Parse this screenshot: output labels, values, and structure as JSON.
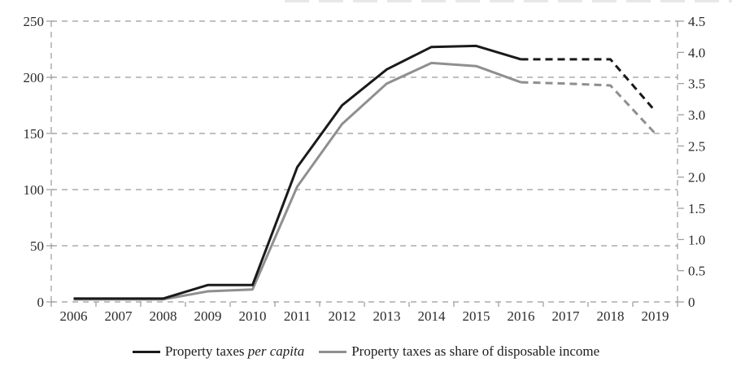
{
  "chart_data": {
    "type": "line",
    "title": "",
    "x_labels": [
      "2006",
      "2007",
      "2008",
      "2009",
      "2010",
      "2011",
      "2012",
      "2013",
      "2014",
      "2015",
      "2016",
      "2017",
      "2018",
      "2019"
    ],
    "series": [
      {
        "name": "Property taxes per capita",
        "axis": "left",
        "color": "#1a1a1a",
        "solid_until_index": 10,
        "values": [
          3,
          3,
          3,
          15,
          15,
          120,
          175,
          207,
          227,
          228,
          216,
          216,
          216,
          170
        ]
      },
      {
        "name": "Property taxes as share of disposable income",
        "axis": "right",
        "color": "#8f8f8f",
        "solid_until_index": 10,
        "values": [
          0.04,
          0.04,
          0.04,
          0.17,
          0.2,
          1.85,
          2.85,
          3.5,
          3.83,
          3.78,
          3.52,
          3.5,
          3.47,
          2.7
        ]
      }
    ],
    "left_axis": {
      "min": 0,
      "max": 250,
      "tick_labels": [
        "0",
        "50",
        "100",
        "150",
        "200",
        "250"
      ]
    },
    "right_axis": {
      "min": 0,
      "max": 4.5,
      "tick_labels": [
        "0",
        "0.5",
        "1.0",
        "1.5",
        "2.0",
        "2.5",
        "3.0",
        "3.5",
        "4.0",
        "4.5"
      ]
    },
    "grid": "horizontal dashed gridlines at left-axis steps of 50",
    "legend_position": "bottom",
    "dashed_note": "2016-2019 segments of both series are drawn dashed (projection)"
  },
  "legend": {
    "item1_prefix": "Property taxes ",
    "item1_italic": "per capita",
    "item2": "Property taxes as share of disposable income"
  },
  "colors": {
    "series_per_capita": "#1a1a1a",
    "series_share": "#8f8f8f",
    "gridline": "#9a9a9a",
    "text": "#2b2b2b"
  }
}
